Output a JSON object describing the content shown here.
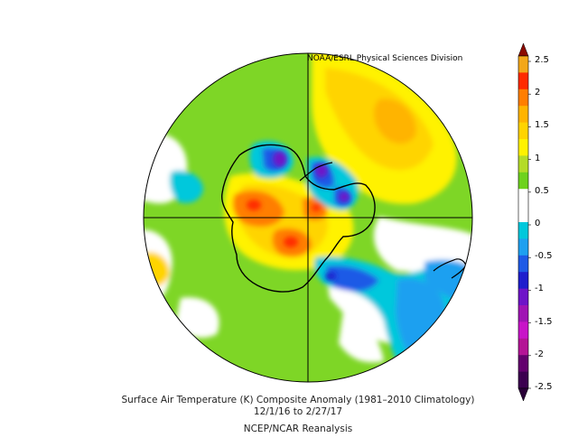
{
  "credit": "NOAA/ESRL Physical Sciences Division",
  "caption": {
    "line1": "Surface Air Temperature (K) Composite Anomaly (1981–2010 Climatology)",
    "line2": "12/1/16  to 2/27/17",
    "line3": "NCEP/NCAR Reanalysis"
  },
  "map": {
    "projection": "south polar stereographic",
    "region": "Antarctica and Southern Ocean",
    "crosshair_lines": true
  },
  "colorbar": {
    "labels": [
      "2.5",
      "2",
      "1.5",
      "1",
      "0.5",
      "0",
      "-0.5",
      "-1",
      "-1.5",
      "-2",
      "-2.5"
    ],
    "colors": [
      "#f3a71a",
      "#ff2a00",
      "#ff7e00",
      "#ffb400",
      "#ffd400",
      "#fff200",
      "#b4dc28",
      "#6ed21e",
      "#ffffff",
      "#ffffff",
      "#00c8dc",
      "#1ea0f0",
      "#1e5ae6",
      "#1e1ecd",
      "#6e14c8",
      "#a014b4",
      "#c814c8",
      "#b41496",
      "#64006e",
      "#3c0050"
    ]
  }
}
